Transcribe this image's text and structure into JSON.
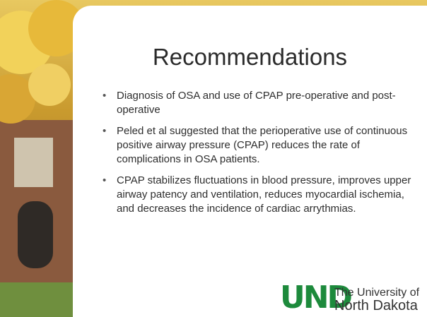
{
  "slide": {
    "title": "Recommendations",
    "bullets": [
      "Diagnosis of OSA and use of CPAP pre-operative and post-operative",
      "Peled et al suggested that the perioperative use of continuous positive airway pressure (CPAP) reduces the rate of complications in OSA patients.",
      "CPAP stabilizes fluctuations in blood pressure, improves upper airway patency and ventilation, reduces myocardial ischemia, and decreases the incidence of cardiac arrythmias."
    ],
    "logo": {
      "mark": "UND",
      "line1": "The University of",
      "line2": "North Dakota"
    }
  }
}
